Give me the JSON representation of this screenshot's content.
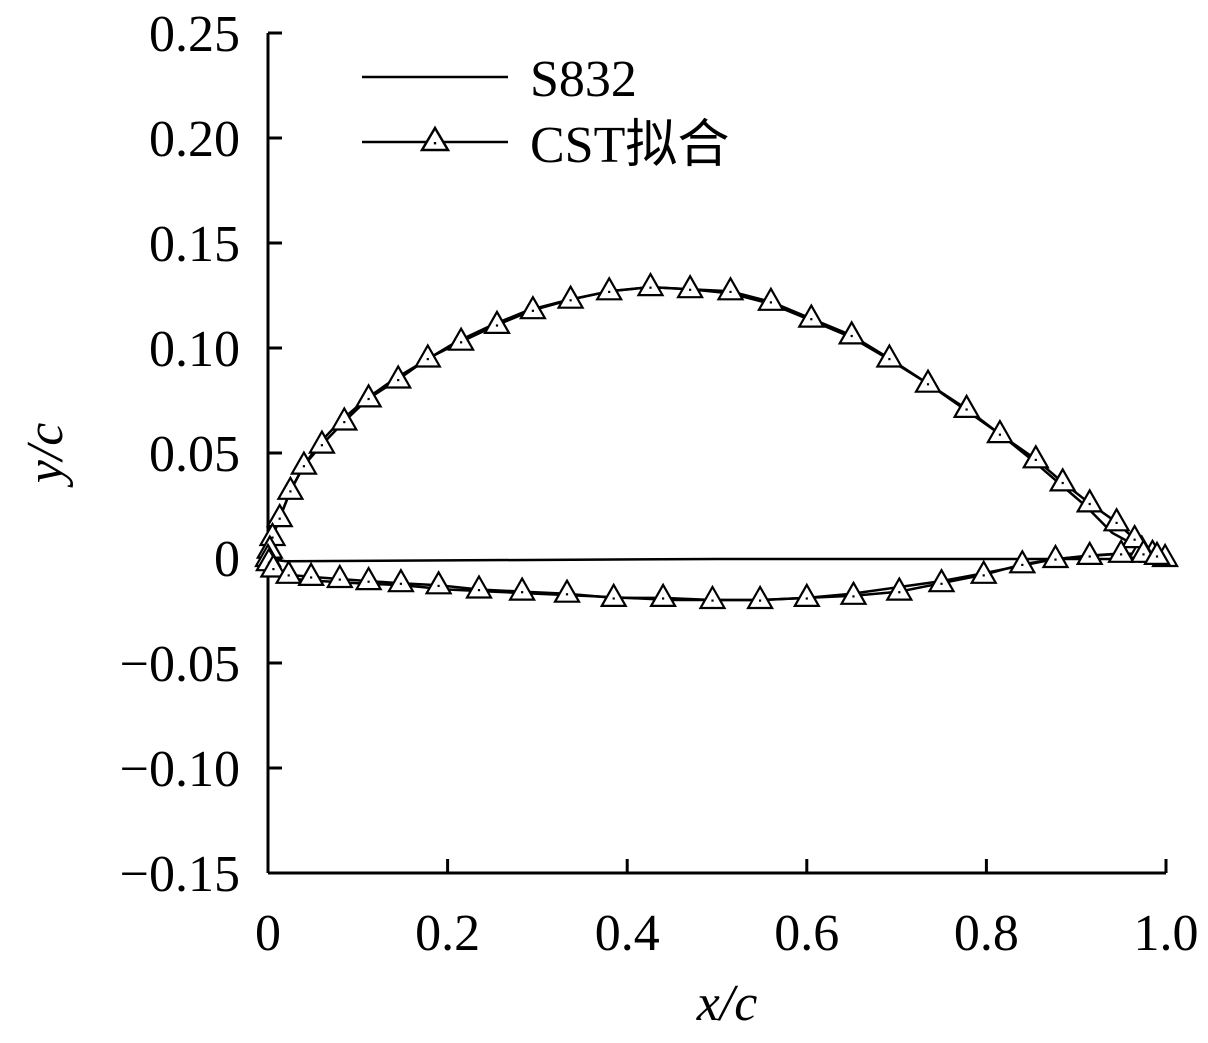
{
  "chart_data": {
    "type": "line",
    "xlabel": "x/c",
    "ylabel": "y/c",
    "xlim": [
      0,
      1.0
    ],
    "ylim": [
      -0.15,
      0.25
    ],
    "x_ticks": [
      0,
      0.2,
      0.4,
      0.6,
      0.8,
      1.0
    ],
    "x_tick_labels": [
      "0",
      "0.2",
      "0.4",
      "0.6",
      "0.8",
      "1.0"
    ],
    "y_ticks": [
      -0.15,
      -0.1,
      -0.05,
      0,
      0.05,
      0.1,
      0.15,
      0.2,
      0.25
    ],
    "y_tick_labels": [
      "−0.15",
      "−0.10",
      "−0.05",
      "0",
      "0.05",
      "0.10",
      "0.15",
      "0.20",
      "0.25"
    ],
    "grid": false,
    "legend_position": "top-left",
    "series": [
      {
        "name": "S832",
        "marker": "none",
        "color": "#000000",
        "points": [
          [
            1.0,
            0.0
          ],
          [
            0.97,
            0.005
          ],
          [
            0.94,
            0.012
          ],
          [
            0.91,
            0.025
          ],
          [
            0.88,
            0.036
          ],
          [
            0.85,
            0.047
          ],
          [
            0.815,
            0.059
          ],
          [
            0.775,
            0.071
          ],
          [
            0.735,
            0.083
          ],
          [
            0.69,
            0.095
          ],
          [
            0.65,
            0.105
          ],
          [
            0.6,
            0.114
          ],
          [
            0.56,
            0.121
          ],
          [
            0.515,
            0.126
          ],
          [
            0.47,
            0.128
          ],
          [
            0.425,
            0.129
          ],
          [
            0.38,
            0.127
          ],
          [
            0.335,
            0.123
          ],
          [
            0.29,
            0.118
          ],
          [
            0.25,
            0.111
          ],
          [
            0.21,
            0.103
          ],
          [
            0.175,
            0.094
          ],
          [
            0.14,
            0.085
          ],
          [
            0.11,
            0.076
          ],
          [
            0.08,
            0.065
          ],
          [
            0.058,
            0.055
          ],
          [
            0.04,
            0.044
          ],
          [
            0.025,
            0.032
          ],
          [
            0.013,
            0.019
          ],
          [
            0.005,
            0.01
          ],
          [
            0.0015,
            0.004
          ],
          [
            0.0,
            0.0
          ],
          [
            0.001,
            -0.002
          ],
          [
            0.005,
            -0.005
          ],
          [
            0.015,
            -0.008
          ],
          [
            0.03,
            -0.01
          ],
          [
            0.06,
            -0.011
          ],
          [
            0.1,
            -0.012
          ],
          [
            0.15,
            -0.013
          ],
          [
            0.2,
            -0.015
          ],
          [
            0.25,
            -0.016
          ],
          [
            0.3,
            -0.017
          ],
          [
            0.35,
            -0.018
          ],
          [
            0.4,
            -0.019
          ],
          [
            0.45,
            -0.02
          ],
          [
            0.5,
            -0.02
          ],
          [
            0.55,
            -0.02
          ],
          [
            0.6,
            -0.019
          ],
          [
            0.65,
            -0.017
          ],
          [
            0.7,
            -0.014
          ],
          [
            0.75,
            -0.011
          ],
          [
            0.8,
            -0.007
          ],
          [
            0.835,
            -0.004
          ],
          [
            0.87,
            -0.001
          ],
          [
            0.91,
            0.001
          ],
          [
            0.945,
            0.002
          ],
          [
            0.975,
            0.002
          ],
          [
            1.0,
            0.0
          ],
          [
            0.98,
            -0.0005
          ],
          [
            0.5,
            -0.0005
          ],
          [
            0.02,
            -0.0015
          ],
          [
            0.0,
            -0.0005
          ]
        ]
      },
      {
        "name": "CST拟合",
        "marker": "triangle",
        "color": "#000000",
        "points": [
          [
            0.999,
            0.0
          ],
          [
            0.985,
            0.002
          ],
          [
            0.973,
            0.004
          ],
          [
            0.965,
            0.009
          ],
          [
            0.945,
            0.017
          ],
          [
            0.915,
            0.026
          ],
          [
            0.885,
            0.036
          ],
          [
            0.855,
            0.047
          ],
          [
            0.815,
            0.059
          ],
          [
            0.778,
            0.071
          ],
          [
            0.735,
            0.083
          ],
          [
            0.692,
            0.095
          ],
          [
            0.65,
            0.106
          ],
          [
            0.605,
            0.114
          ],
          [
            0.56,
            0.122
          ],
          [
            0.515,
            0.127
          ],
          [
            0.47,
            0.128
          ],
          [
            0.426,
            0.129
          ],
          [
            0.38,
            0.127
          ],
          [
            0.337,
            0.123
          ],
          [
            0.295,
            0.118
          ],
          [
            0.255,
            0.111
          ],
          [
            0.215,
            0.103
          ],
          [
            0.178,
            0.095
          ],
          [
            0.145,
            0.085
          ],
          [
            0.112,
            0.076
          ],
          [
            0.085,
            0.065
          ],
          [
            0.06,
            0.054
          ],
          [
            0.04,
            0.044
          ],
          [
            0.025,
            0.032
          ],
          [
            0.013,
            0.019
          ],
          [
            0.005,
            0.01
          ],
          [
            0.002,
            0.004
          ],
          [
            0.0,
            0.0
          ],
          [
            0.001,
            -0.002
          ],
          [
            0.006,
            -0.005
          ],
          [
            0.023,
            -0.008
          ],
          [
            0.048,
            -0.009
          ],
          [
            0.08,
            -0.01
          ],
          [
            0.112,
            -0.011
          ],
          [
            0.148,
            -0.012
          ],
          [
            0.19,
            -0.013
          ],
          [
            0.235,
            -0.015
          ],
          [
            0.283,
            -0.016
          ],
          [
            0.333,
            -0.017
          ],
          [
            0.385,
            -0.019
          ],
          [
            0.44,
            -0.019
          ],
          [
            0.495,
            -0.02
          ],
          [
            0.548,
            -0.02
          ],
          [
            0.6,
            -0.019
          ],
          [
            0.652,
            -0.018
          ],
          [
            0.703,
            -0.016
          ],
          [
            0.75,
            -0.012
          ],
          [
            0.797,
            -0.008
          ],
          [
            0.84,
            -0.003
          ],
          [
            0.877,
            -0.0005
          ],
          [
            0.915,
            0.001
          ],
          [
            0.95,
            0.002
          ],
          [
            0.975,
            0.002
          ],
          [
            0.99,
            0.001
          ]
        ]
      }
    ]
  }
}
